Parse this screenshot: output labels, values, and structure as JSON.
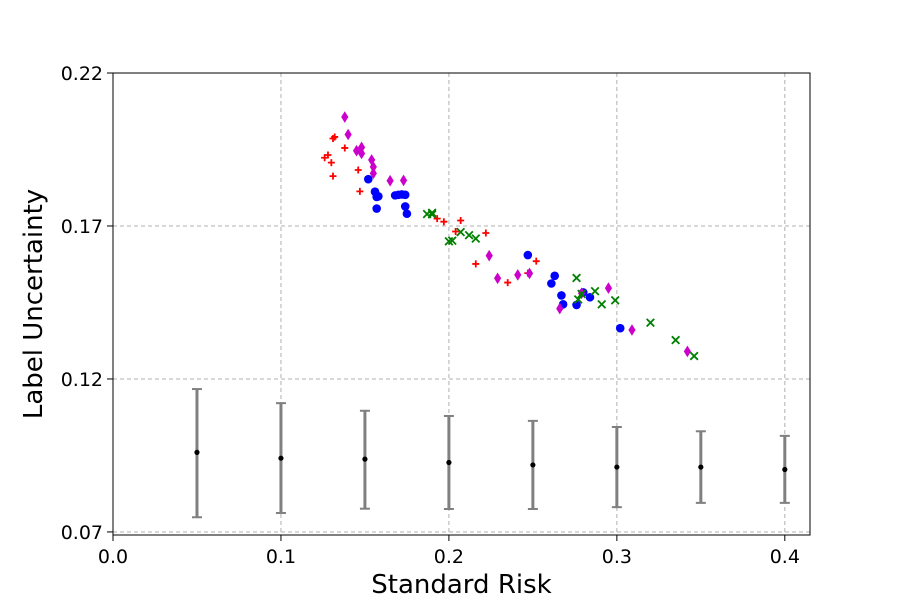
{
  "chart_data": {
    "type": "scatter",
    "title": "",
    "xlabel": "Standard Risk",
    "ylabel": "Label Uncertainty",
    "xlim": [
      0.0,
      0.415
    ],
    "ylim": [
      0.069,
      0.22
    ],
    "xticks": [
      0.0,
      0.1,
      0.2,
      0.3,
      0.4
    ],
    "xtick_labels": [
      "0.0",
      "0.1",
      "0.2",
      "0.3",
      "0.4"
    ],
    "yticks": [
      0.07,
      0.12,
      0.17,
      0.22
    ],
    "ytick_labels": [
      "0.07",
      "0.12",
      "0.17",
      "0.22"
    ],
    "grid": true,
    "legend": "none",
    "series": [
      {
        "marker": "plus",
        "color": "#ff0000",
        "points": [
          [
            0.126,
            0.1923
          ],
          [
            0.128,
            0.1932
          ],
          [
            0.13,
            0.1907
          ],
          [
            0.131,
            0.1863
          ],
          [
            0.131,
            0.1986
          ],
          [
            0.132,
            0.1991
          ],
          [
            0.138,
            0.1955
          ],
          [
            0.146,
            0.1883
          ],
          [
            0.147,
            0.1813
          ],
          [
            0.193,
            0.1724
          ],
          [
            0.197,
            0.1714
          ],
          [
            0.204,
            0.1682
          ],
          [
            0.207,
            0.1718
          ],
          [
            0.216,
            0.1576
          ],
          [
            0.222,
            0.1677
          ],
          [
            0.235,
            0.1515
          ],
          [
            0.247,
            0.1546
          ],
          [
            0.252,
            0.1585
          ]
        ]
      },
      {
        "marker": "circle",
        "color": "#0000ff",
        "points": [
          [
            0.152,
            0.1853
          ],
          [
            0.156,
            0.1812
          ],
          [
            0.157,
            0.1795
          ],
          [
            0.158,
            0.1797
          ],
          [
            0.157,
            0.1757
          ],
          [
            0.168,
            0.18
          ],
          [
            0.17,
            0.1802
          ],
          [
            0.172,
            0.1803
          ],
          [
            0.174,
            0.1802
          ],
          [
            0.174,
            0.1764
          ],
          [
            0.175,
            0.174
          ],
          [
            0.247,
            0.1605
          ],
          [
            0.261,
            0.1512
          ],
          [
            0.263,
            0.1537
          ],
          [
            0.267,
            0.1473
          ],
          [
            0.268,
            0.1444
          ],
          [
            0.276,
            0.1442
          ],
          [
            0.28,
            0.1483
          ],
          [
            0.284,
            0.1467
          ],
          [
            0.302,
            0.1366
          ]
        ]
      },
      {
        "marker": "diamond",
        "color": "#cc00cc",
        "points": [
          [
            0.138,
            0.2056
          ],
          [
            0.14,
            0.1999
          ],
          [
            0.145,
            0.1946
          ],
          [
            0.148,
            0.1937
          ],
          [
            0.148,
            0.1957
          ],
          [
            0.154,
            0.1916
          ],
          [
            0.155,
            0.1893
          ],
          [
            0.155,
            0.1872
          ],
          [
            0.165,
            0.1848
          ],
          [
            0.173,
            0.1849
          ],
          [
            0.224,
            0.1603
          ],
          [
            0.229,
            0.1529
          ],
          [
            0.241,
            0.154
          ],
          [
            0.248,
            0.1545
          ],
          [
            0.266,
            0.143
          ],
          [
            0.279,
            0.148
          ],
          [
            0.295,
            0.1497
          ],
          [
            0.309,
            0.136
          ],
          [
            0.342,
            0.129
          ]
        ]
      },
      {
        "marker": "x",
        "color": "#008000",
        "points": [
          [
            0.187,
            0.1739
          ],
          [
            0.19,
            0.1738
          ],
          [
            0.19,
            0.1743
          ],
          [
            0.2,
            0.165
          ],
          [
            0.202,
            0.1652
          ],
          [
            0.207,
            0.168
          ],
          [
            0.212,
            0.167
          ],
          [
            0.216,
            0.1659
          ],
          [
            0.276,
            0.153
          ],
          [
            0.277,
            0.146
          ],
          [
            0.279,
            0.1478
          ],
          [
            0.287,
            0.1487
          ],
          [
            0.291,
            0.1444
          ],
          [
            0.299,
            0.1457
          ],
          [
            0.32,
            0.1384
          ],
          [
            0.335,
            0.1327
          ],
          [
            0.346,
            0.1275
          ]
        ]
      }
    ],
    "error_bars": {
      "color": "#808080",
      "center_color": "#000000",
      "points": [
        {
          "x": 0.05,
          "y": 0.096,
          "lower": 0.0748,
          "upper": 0.1167
        },
        {
          "x": 0.1,
          "y": 0.0941,
          "lower": 0.0762,
          "upper": 0.1121
        },
        {
          "x": 0.15,
          "y": 0.0938,
          "lower": 0.0776,
          "upper": 0.1096
        },
        {
          "x": 0.2,
          "y": 0.0927,
          "lower": 0.0775,
          "upper": 0.1079
        },
        {
          "x": 0.25,
          "y": 0.0919,
          "lower": 0.0775,
          "upper": 0.1063
        },
        {
          "x": 0.3,
          "y": 0.0912,
          "lower": 0.0781,
          "upper": 0.1043
        },
        {
          "x": 0.35,
          "y": 0.0912,
          "lower": 0.0795,
          "upper": 0.1029
        },
        {
          "x": 0.4,
          "y": 0.0904,
          "lower": 0.0795,
          "upper": 0.1014
        }
      ]
    }
  }
}
